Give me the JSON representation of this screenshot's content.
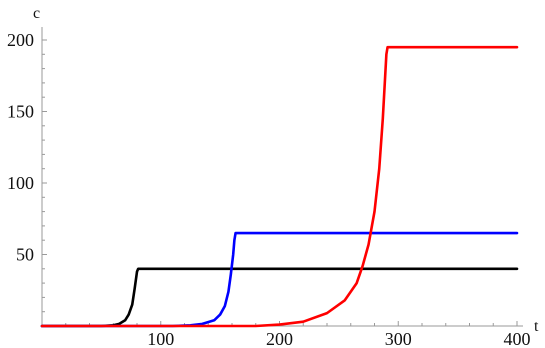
{
  "chart_data": {
    "type": "line",
    "title": "",
    "xlabel": "t",
    "ylabel": "c",
    "xlim": [
      0,
      400
    ],
    "ylim": [
      0,
      200
    ],
    "x_ticks": [
      100,
      200,
      300,
      400
    ],
    "x_tick_labels": [
      "100",
      "200",
      "300",
      "400"
    ],
    "y_ticks": [
      50,
      100,
      150,
      200
    ],
    "y_tick_labels": [
      "50",
      "100",
      "150",
      "200"
    ],
    "grid": false,
    "legend": "none",
    "series": [
      {
        "color": "#000000",
        "x": [
          0,
          50,
          60,
          65,
          70,
          73,
          76,
          78,
          80,
          81,
          400
        ],
        "y": [
          0,
          0,
          0.5,
          1.5,
          4,
          8,
          15,
          26,
          38,
          40,
          40
        ]
      },
      {
        "color": "#0000ff",
        "x": [
          0,
          110,
          125,
          135,
          145,
          150,
          154,
          157,
          159,
          161,
          162,
          163,
          400
        ],
        "y": [
          0,
          0,
          0.5,
          1.5,
          4,
          8,
          14,
          24,
          36,
          50,
          60,
          65,
          65
        ]
      },
      {
        "color": "#ff0000",
        "x": [
          0,
          180,
          200,
          220,
          240,
          255,
          265,
          270,
          275,
          280,
          284,
          287,
          289,
          290,
          291,
          400
        ],
        "y": [
          0,
          0,
          1,
          3,
          9,
          18,
          30,
          42,
          57,
          80,
          110,
          145,
          175,
          190,
          195,
          195
        ]
      }
    ]
  }
}
